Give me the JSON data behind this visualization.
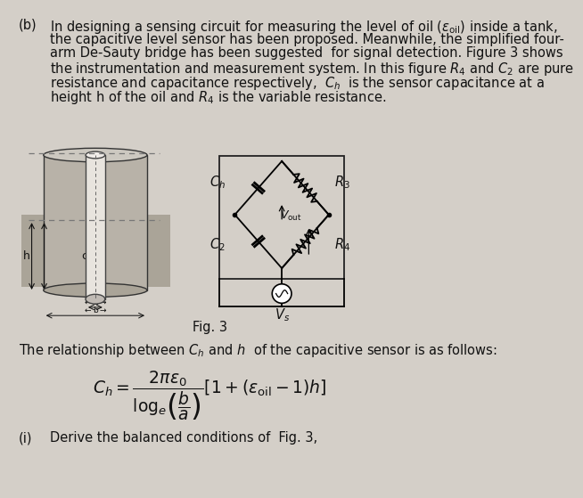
{
  "background_color": "#d4cfc8",
  "text_color": "#111111",
  "part_label": "(b)",
  "lines": [
    "In designing a sensing circuit for measuring the level of oil ($\\varepsilon_{\\rm oil}$) inside a tank,",
    "the capacitive level sensor has been proposed. Meanwhile, the simplified four-",
    "arm De-Sauty bridge has been suggested  for signal detection. Figure 3 shows",
    "the instrumentation and measurement system. In this figure $R_4$ and $C_2$ are pure",
    "resistance and capacitance respectively,  $C_h$  is the sensor capacitance at a",
    "height h of the oil and $R_4$ is the variable resistance."
  ],
  "fig_label": "Fig. 3",
  "relationship_text": "The relationship between $C_h$ and $h$  of the capacitive sensor is as follows:",
  "part_i_label": "(i)",
  "part_i_text": "Derive the balanced conditions of  Fig. 3,",
  "tank_bg": "#b8b0a0",
  "tank_light": "#c8c2b8",
  "tank_inner_bg": "#d0c8bc",
  "tank_tube_color": "#e0dbd4",
  "circuit_box_color": "#222222",
  "resistor_color": "#111111"
}
